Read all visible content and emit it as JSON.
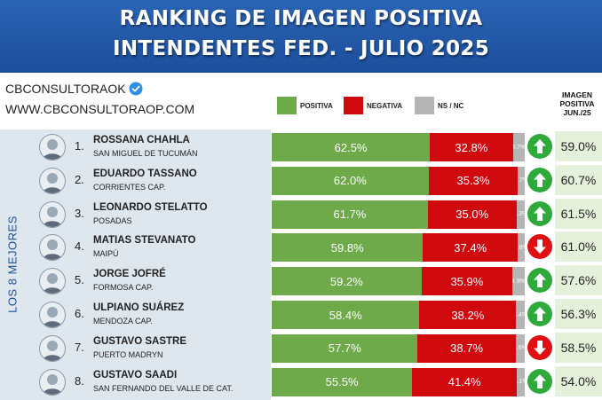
{
  "header": {
    "title_line1": "RANKING DE IMAGEN POSITIVA",
    "title_line2": "INTENDENTES FED. - JULIO 2025"
  },
  "brand": {
    "handle": "CBCONSULTORAOK",
    "website": "WWW.CBCONSULTORAOP.COM"
  },
  "legend": {
    "positiva": "POSITIVA",
    "negativa": "NEGATIVA",
    "nsnc": "NS / NC"
  },
  "image_column_header": [
    "IMAGEN",
    "POSITIVA",
    "JUN./25"
  ],
  "side_label": "LOS 8 MEJORES",
  "colors": {
    "positiva": "#6faa4a",
    "negativa": "#d0090f",
    "nsnc": "#b5b5b5",
    "up": "#2eaa3a",
    "down": "#e01010",
    "header": "#1d4f9c"
  },
  "chart_data": {
    "type": "bar",
    "stacked": true,
    "orientation": "horizontal",
    "title": "RANKING DE IMAGEN POSITIVA INTENDENTES FED. - JULIO 2025",
    "categories": [
      "ROSSANA CHAHLA",
      "EDUARDO TASSANO",
      "LEONARDO STELATTO",
      "MATIAS STEVANATO",
      "JORGE JOFRÉ",
      "ULPIANO SUÁREZ",
      "GUSTAVO SASTRE",
      "GUSTAVO SAADI"
    ],
    "series": [
      {
        "name": "POSITIVA",
        "values": [
          62.5,
          62.0,
          61.7,
          59.8,
          59.2,
          58.4,
          57.7,
          55.5
        ]
      },
      {
        "name": "NEGATIVA",
        "values": [
          32.8,
          35.3,
          35.0,
          37.4,
          35.9,
          38.2,
          38.7,
          41.4
        ]
      },
      {
        "name": "NS / NC",
        "values": [
          4.7,
          2.7,
          3.3,
          2.8,
          4.9,
          3.4,
          3.6,
          3.1
        ]
      }
    ],
    "legend_position": "top"
  },
  "rows": [
    {
      "rank": "1.",
      "name": "ROSSANA CHAHLA",
      "city": "SAN MIGUEL DE TUCUMÁN",
      "pos": "62.5%",
      "neg": "32.8%",
      "ns": "4.7%",
      "trend": "up",
      "trend_icon": "arrow-up-icon",
      "prev": "59.0%"
    },
    {
      "rank": "2.",
      "name": "EDUARDO TASSANO",
      "city": "CORRIENTES CAP.",
      "pos": "62.0%",
      "neg": "35.3%",
      "ns": "2.7%",
      "trend": "up",
      "trend_icon": "arrow-up-icon",
      "prev": "60.7%"
    },
    {
      "rank": "3.",
      "name": "LEONARDO STELATTO",
      "city": "POSADAS",
      "pos": "61.7%",
      "neg": "35.0%",
      "ns": "3.3%",
      "trend": "up",
      "trend_icon": "arrow-up-icon",
      "prev": "61.5%"
    },
    {
      "rank": "4.",
      "name": "MATIAS STEVANATO",
      "city": "MAIPÚ",
      "pos": "59.8%",
      "neg": "37.4%",
      "ns": "2.8%",
      "trend": "down",
      "trend_icon": "arrow-down-icon",
      "prev": "61.0%"
    },
    {
      "rank": "5.",
      "name": "JORGE JOFRÉ",
      "city": "FORMOSA CAP.",
      "pos": "59.2%",
      "neg": "35.9%",
      "ns": "4.9%",
      "trend": "up",
      "trend_icon": "arrow-up-icon",
      "prev": "57.6%"
    },
    {
      "rank": "6.",
      "name": "ULPIANO SUÁREZ",
      "city": "MENDOZA CAP.",
      "pos": "58.4%",
      "neg": "38.2%",
      "ns": "3.4%",
      "trend": "up",
      "trend_icon": "arrow-up-icon",
      "prev": "56.3%"
    },
    {
      "rank": "7.",
      "name": "GUSTAVO SASTRE",
      "city": "PUERTO MADRYN",
      "pos": "57.7%",
      "neg": "38.7%",
      "ns": "3.6%",
      "trend": "down",
      "trend_icon": "arrow-down-icon",
      "prev": "58.5%"
    },
    {
      "rank": "8.",
      "name": "GUSTAVO SAADI",
      "city": "SAN FERNANDO DEL VALLE DE CAT.",
      "pos": "55.5%",
      "neg": "41.4%",
      "ns": "3.1%",
      "trend": "up",
      "trend_icon": "arrow-up-icon",
      "prev": "54.0%"
    }
  ]
}
